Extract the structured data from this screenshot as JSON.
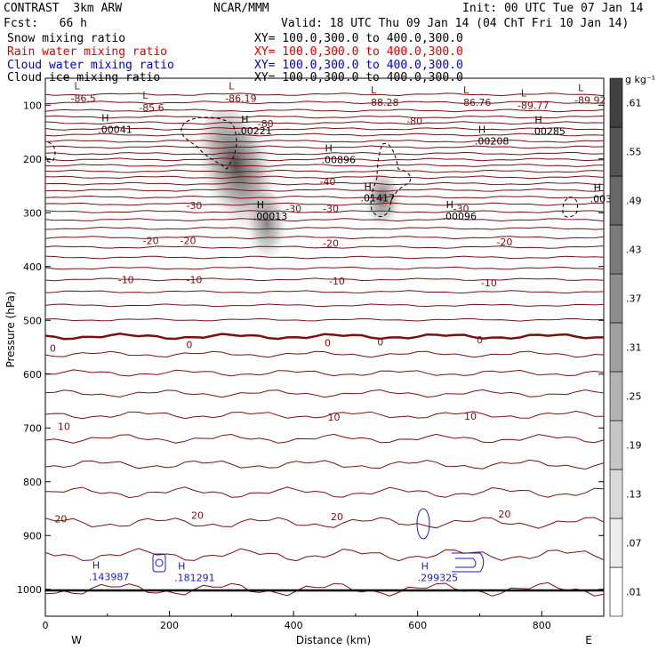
{
  "header": {
    "title": "CONTRAST  3km ARW",
    "center": "NCAR/MMM",
    "init": "Init: 00 UTC Tue 07 Jan 14",
    "fcst": "Fcst:   66 h",
    "valid": "Valid: 18 UTC Thu 09 Jan 14 (04 ChT Fri 10 Jan 14)"
  },
  "fields": [
    {
      "name": "Snow mixing ratio",
      "xy": "XY= 100.0,300.0 to 400.0,300.0",
      "color": "#000000"
    },
    {
      "name": "Rain water mixing ratio",
      "xy": "XY= 100.0,300.0 to 400.0,300.0",
      "color": "#dd0000"
    },
    {
      "name": "Cloud water mixing ratio",
      "xy": "XY= 100.0,300.0 to 400.0,300.0",
      "color": "#0000cc"
    },
    {
      "name": "Cloud ice mixing ratio",
      "xy": "XY= 100.0,300.0 to 400.0,300.0",
      "color": "#000000"
    }
  ],
  "colors": {
    "temperature": "#7a1010",
    "cloud_water": "#1a1acc",
    "cloud_ice": "#000000",
    "snow_shade": "#555555"
  },
  "chart_data": {
    "type": "contour",
    "xlabel": "Distance (km)",
    "ylabel": "Pressure (hPa)",
    "xlim": [
      0,
      900
    ],
    "ylim": [
      1050,
      50
    ],
    "x_ticks": [
      "0",
      "200",
      "400",
      "600",
      "800"
    ],
    "x_tick_values": [
      0,
      200,
      400,
      600,
      800
    ],
    "y_ticks": [
      "100",
      "200",
      "300",
      "400",
      "500",
      "600",
      "700",
      "800",
      "900",
      "1000"
    ],
    "y_tick_values": [
      100,
      200,
      300,
      400,
      500,
      600,
      700,
      800,
      900,
      1000
    ],
    "west_label": "W",
    "east_label": "E",
    "colorbar": {
      "unit": "g kg⁻¹",
      "labels": [
        ".01",
        ".07",
        ".13",
        ".19",
        ".25",
        ".31",
        ".37",
        ".43",
        ".49",
        ".55",
        ".61"
      ],
      "values": [
        0.01,
        0.07,
        0.13,
        0.19,
        0.25,
        0.31,
        0.37,
        0.43,
        0.49,
        0.55,
        0.61
      ]
    },
    "temperature_levels_hPa": [
      80,
      95,
      110,
      122,
      133,
      144,
      155,
      167,
      178,
      190,
      201,
      212,
      223,
      234,
      246,
      258,
      271,
      284,
      298,
      313,
      329,
      346,
      364,
      383,
      403,
      424,
      447,
      472,
      499,
      530,
      563,
      598,
      636,
      676,
      720,
      768,
      820,
      876,
      936,
      1000
    ],
    "temperature_labels": [
      {
        "text": "-80",
        "x": 355,
        "p": 134
      },
      {
        "text": "-80",
        "x": 595,
        "p": 129
      },
      {
        "text": "-40",
        "x": 455,
        "p": 242
      },
      {
        "text": "-30",
        "x": 240,
        "p": 286
      },
      {
        "text": "-30",
        "x": 400,
        "p": 292
      },
      {
        "text": "-30",
        "x": 460,
        "p": 292
      },
      {
        "text": "-30",
        "x": 670,
        "p": 292
      },
      {
        "text": "-20",
        "x": 170,
        "p": 352
      },
      {
        "text": "-20",
        "x": 230,
        "p": 352
      },
      {
        "text": "-20",
        "x": 460,
        "p": 357
      },
      {
        "text": "-20",
        "x": 740,
        "p": 354
      },
      {
        "text": "-10",
        "x": 130,
        "p": 424
      },
      {
        "text": "-10",
        "x": 240,
        "p": 424
      },
      {
        "text": "-10",
        "x": 470,
        "p": 427
      },
      {
        "text": "-10",
        "x": 715,
        "p": 430
      },
      {
        "text": "0",
        "x": 12,
        "p": 552
      },
      {
        "text": "0",
        "x": 232,
        "p": 545
      },
      {
        "text": "0",
        "x": 455,
        "p": 542
      },
      {
        "text": "0",
        "x": 540,
        "p": 540
      },
      {
        "text": "0",
        "x": 700,
        "p": 536
      },
      {
        "text": "10",
        "x": 30,
        "p": 697
      },
      {
        "text": "10",
        "x": 465,
        "p": 680
      },
      {
        "text": "10",
        "x": 685,
        "p": 678
      },
      {
        "text": "20",
        "x": 25,
        "p": 869
      },
      {
        "text": "20",
        "x": 245,
        "p": 862
      },
      {
        "text": "20",
        "x": 470,
        "p": 865
      },
      {
        "text": "20",
        "x": 740,
        "p": 860
      }
    ],
    "lows": [
      {
        "value": "-86.5",
        "x": 58,
        "p": 79
      },
      {
        "value": "-85.6",
        "x": 168,
        "p": 96
      },
      {
        "value": "-86.19",
        "x": 307,
        "p": 79
      },
      {
        "value": "-88.28",
        "x": 536,
        "p": 86
      },
      {
        "value": "-86.76",
        "x": 685,
        "p": 86
      },
      {
        "value": "-89.77",
        "x": 778,
        "p": 92
      },
      {
        "value": "-89.92",
        "x": 870,
        "p": 82
      }
    ],
    "ice_highs": [
      {
        "value": ".00041",
        "x": 85,
        "p": 137
      },
      {
        "value": ".00221",
        "x": 310,
        "p": 139
      },
      {
        "value": ".00896",
        "x": 445,
        "p": 193
      },
      {
        "value": ".00208",
        "x": 692,
        "p": 158
      },
      {
        "value": ".00285",
        "x": 783,
        "p": 140
      },
      {
        "value": ".00013",
        "x": 335,
        "p": 298
      },
      {
        "value": ".01417",
        "x": 508,
        "p": 264
      },
      {
        "value": ".00096",
        "x": 640,
        "p": 298
      },
      {
        "value": ".003",
        "x": 878,
        "p": 266
      }
    ],
    "cloud_water_highs": [
      {
        "value": ".143987",
        "x": 70,
        "p": 968
      },
      {
        "value": ".181291",
        "x": 208,
        "p": 970
      },
      {
        "value": ".299325",
        "x": 600,
        "p": 970
      }
    ]
  }
}
